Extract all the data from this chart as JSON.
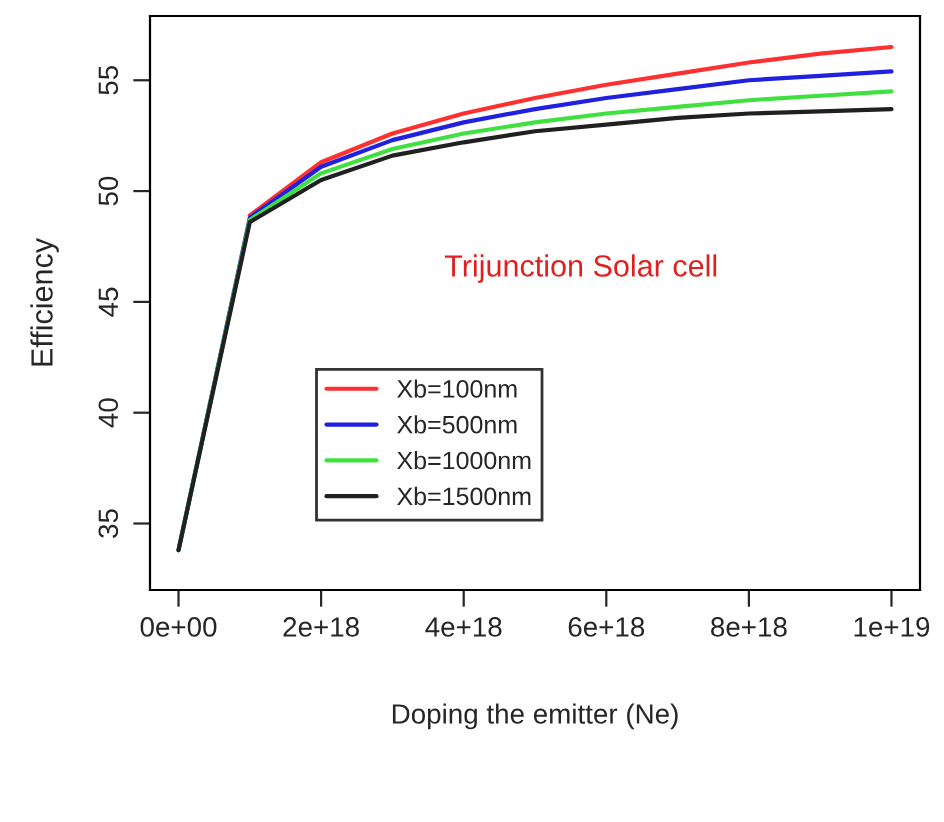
{
  "chart_data": {
    "type": "line",
    "xlabel": "Doping the emitter (Ne)",
    "ylabel": "Efficiency",
    "x": [
      0,
      1e+18,
      2e+18,
      3e+18,
      4e+18,
      5e+18,
      6e+18,
      7e+18,
      8e+18,
      9e+18,
      1e+19
    ],
    "series": [
      {
        "name": "Xb=100nm",
        "color": "#ff3030",
        "values": [
          null,
          48.9,
          51.3,
          52.6,
          53.5,
          54.2,
          54.8,
          55.3,
          55.8,
          56.2,
          56.5
        ]
      },
      {
        "name": "Xb=500nm",
        "color": "#2020e0",
        "values": [
          33.8,
          48.8,
          51.1,
          52.3,
          53.1,
          53.7,
          54.2,
          54.6,
          55.0,
          55.2,
          55.4
        ]
      },
      {
        "name": "Xb=1000nm",
        "color": "#40e040",
        "values": [
          33.8,
          48.7,
          50.8,
          51.9,
          52.6,
          53.1,
          53.5,
          53.8,
          54.1,
          54.3,
          54.5
        ]
      },
      {
        "name": "Xb=1500nm",
        "color": "#202020",
        "values": [
          33.8,
          48.6,
          50.5,
          51.6,
          52.2,
          52.7,
          53.0,
          53.3,
          53.5,
          53.6,
          53.7
        ]
      }
    ],
    "annotations": [
      "Trijunction Solar cell"
    ],
    "xlim": [
      -4e+17,
      1.04e+19
    ],
    "ylim": [
      32.0,
      57.9
    ],
    "xticks": [
      {
        "value": 0,
        "label": "0e+00"
      },
      {
        "value": 2e+18,
        "label": "2e+18"
      },
      {
        "value": 4e+18,
        "label": "4e+18"
      },
      {
        "value": 6e+18,
        "label": "6e+18"
      },
      {
        "value": 8e+18,
        "label": "8e+18"
      },
      {
        "value": 1e+19,
        "label": "1e+19"
      }
    ],
    "yticks": [
      35,
      40,
      45,
      50,
      55
    ],
    "grid": false,
    "legend": "lower left",
    "marker": "none",
    "line_style": "solid"
  }
}
